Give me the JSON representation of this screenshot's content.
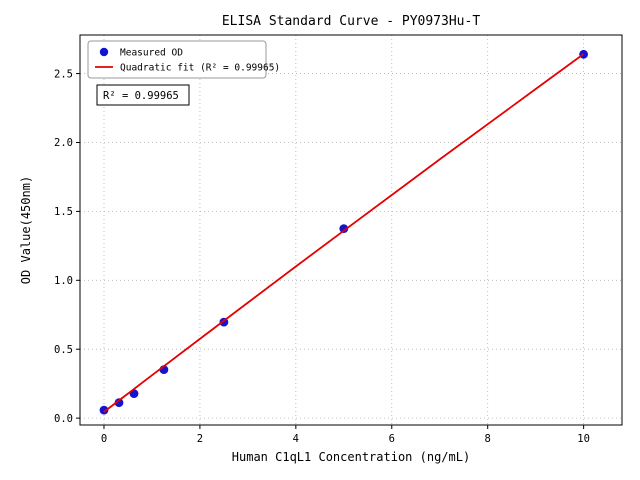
{
  "chart_data": {
    "type": "scatter",
    "title": "ELISA Standard Curve - PY0973Hu-T",
    "xlabel": "Human C1qL1 Concentration (ng/mL)",
    "ylabel": "OD Value(450nm)",
    "xlim": [
      -0.5,
      10.8
    ],
    "ylim": [
      -0.05,
      2.78
    ],
    "xticks": [
      0,
      2,
      4,
      6,
      8,
      10
    ],
    "yticks": [
      0.0,
      0.5,
      1.0,
      1.5,
      2.0,
      2.5
    ],
    "grid": true,
    "grid_color": "#b0b0b0",
    "annotation": "R² = 0.99965",
    "legend": {
      "position": "upper-left",
      "entries": [
        {
          "label": "Measured OD",
          "marker": "dot"
        },
        {
          "label": "Quadratic fit (R² = 0.99965)",
          "marker": "line"
        }
      ]
    },
    "series": [
      {
        "name": "Measured OD",
        "type": "scatter",
        "color": "#1414cc",
        "x": [
          0,
          0.313,
          0.625,
          1.25,
          2.5,
          5,
          10
        ],
        "y": [
          0.058,
          0.112,
          0.178,
          0.352,
          0.697,
          1.375,
          2.64
        ]
      },
      {
        "name": "Quadratic fit",
        "type": "line",
        "color": "#e60000",
        "x": [
          0,
          1,
          2,
          3,
          4,
          5,
          6,
          7,
          8,
          9,
          10
        ],
        "y": [
          0.045,
          0.311,
          0.575,
          0.838,
          1.1,
          1.36,
          1.619,
          1.877,
          2.133,
          2.388,
          2.642
        ]
      }
    ]
  }
}
